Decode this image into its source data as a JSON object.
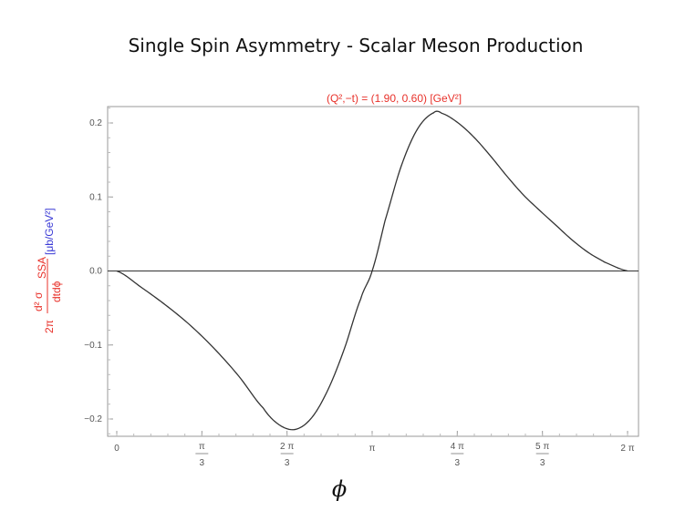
{
  "title": "Single Spin Asymmetry - Scalar Meson Production",
  "chart_data": {
    "type": "line",
    "subtitle": "(Q²,−t) = (1.90, 0.60) [GeV²]",
    "xlabel": "ϕ",
    "ylabel": {
      "prefix": "2π",
      "numerator": "d² σ",
      "numerator_sub": "SSA",
      "denominator": "dtdϕ",
      "unit": "[μb/GeV²]"
    },
    "xlim": [
      0,
      6.2832
    ],
    "ylim": [
      -0.22,
      0.22
    ],
    "x_ticks": [
      {
        "value": 0,
        "num": "0",
        "den": ""
      },
      {
        "value": 1.0472,
        "num": "π",
        "den": "3"
      },
      {
        "value": 2.0944,
        "num": "2 π",
        "den": "3"
      },
      {
        "value": 3.1416,
        "num": "π",
        "den": ""
      },
      {
        "value": 4.1888,
        "num": "4 π",
        "den": "3"
      },
      {
        "value": 5.236,
        "num": "5 π",
        "den": "3"
      },
      {
        "value": 6.2832,
        "num": "2 π",
        "den": ""
      }
    ],
    "y_ticks": [
      {
        "value": 0.2,
        "label": "0.2"
      },
      {
        "value": 0.1,
        "label": "0.1"
      },
      {
        "value": 0.0,
        "label": "0.0"
      },
      {
        "value": -0.1,
        "label": "−0.1"
      },
      {
        "value": -0.2,
        "label": "−0.2"
      }
    ],
    "series": [
      {
        "color": "#333333",
        "x": [
          0,
          0.3,
          0.6,
          0.9,
          1.2,
          1.5,
          1.8,
          2.0,
          2.2,
          2.4,
          2.6,
          2.8,
          3.0,
          3.1416,
          3.3,
          3.5,
          3.7,
          3.9,
          4.0,
          4.2,
          4.4,
          4.6,
          4.8,
          5.0,
          5.2,
          5.4,
          5.6,
          5.8,
          6.0,
          6.2832
        ],
        "y": [
          0,
          -0.022,
          -0.046,
          -0.073,
          -0.105,
          -0.142,
          -0.185,
          -0.208,
          -0.214,
          -0.198,
          -0.16,
          -0.105,
          -0.038,
          0.0,
          0.068,
          0.142,
          0.192,
          0.214,
          0.213,
          0.2,
          0.18,
          0.155,
          0.128,
          0.103,
          0.082,
          0.062,
          0.042,
          0.025,
          0.012,
          0.0
        ]
      }
    ],
    "zero_line": true,
    "grid": false
  }
}
